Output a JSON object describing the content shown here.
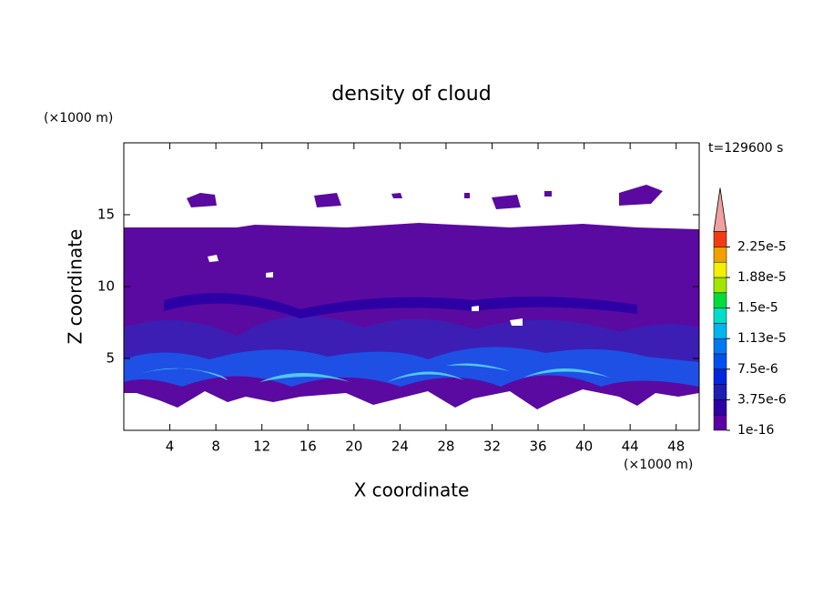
{
  "chart_data": {
    "type": "contour",
    "title": "density of cloud",
    "x_label": "X coordinate",
    "y_label": "Z coordinate",
    "x_unit": "(×1000 m)",
    "y_unit": "(×1000 m)",
    "time_label": "t=129600 s",
    "xlim": [
      0,
      50
    ],
    "xticks": [
      4,
      8,
      12,
      16,
      20,
      24,
      28,
      32,
      36,
      40,
      44,
      48
    ],
    "ylim": [
      0,
      20
    ],
    "yticks": [
      5,
      10,
      15
    ],
    "colorbar": {
      "colors": [
        "#5a00a0",
        "#2d00a5",
        "#1e1eb4",
        "#0028dc",
        "#0050f0",
        "#0078f0",
        "#00b4f0",
        "#00dcc8",
        "#00dc3c",
        "#a0e600",
        "#f0f000",
        "#f0a000",
        "#f03c14"
      ],
      "over_color": "#f0a0a0",
      "ticks": [
        {
          "value": 1e-16,
          "label": "1e-16"
        },
        {
          "value": 3.75e-06,
          "label": "3.75e-6"
        },
        {
          "value": 7.5e-06,
          "label": "7.5e-6"
        },
        {
          "value": 1.13e-05,
          "label": "1.13e-5"
        },
        {
          "value": 1.5e-05,
          "label": "1.5e-5"
        },
        {
          "value": 1.88e-05,
          "label": "1.88e-5"
        },
        {
          "value": 2.25e-05,
          "label": "2.25e-5"
        }
      ]
    }
  }
}
